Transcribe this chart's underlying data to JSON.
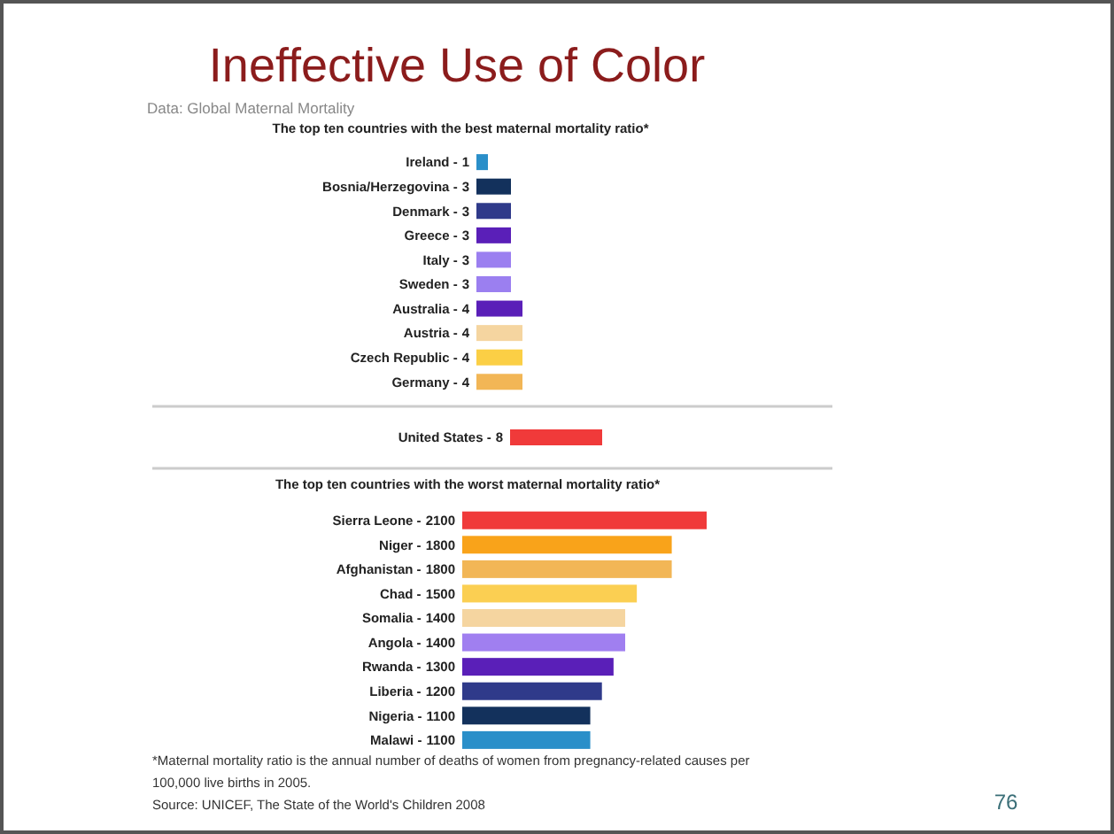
{
  "chart_data": [
    {
      "type": "bar",
      "orientation": "horizontal",
      "data_labels": true,
      "title": "Ineffective Use of Color",
      "subtitle": "The top ten countries with the best maternal mortality ratio*",
      "annotations": [
        "Data: Global Maternal Mortality",
        "76"
      ],
      "categories": [
        "Ireland -",
        "Bosnia/Herzegovina -",
        "Denmark -",
        "Greece -",
        "Italy -",
        "Sweden -",
        "Australia -",
        "Austria -",
        "Czech Republic -",
        "Germany -"
      ],
      "values": [
        1,
        3,
        3,
        3,
        3,
        3,
        4,
        4,
        4,
        4
      ],
      "colors": [
        "#2a8fc9",
        "#13315c",
        "#2f3a8a",
        "#5a1fb8",
        "#9b7ff0",
        "#9b7ff0",
        "#5a1fb8",
        "#f5d5a0",
        "#fbcf45",
        "#f2b656"
      ]
    },
    {
      "type": "bar",
      "orientation": "horizontal",
      "data_labels": true,
      "categories": [
        "United States -"
      ],
      "values": [
        8
      ],
      "colors": [
        "#f03a3a"
      ]
    },
    {
      "type": "bar",
      "orientation": "horizontal",
      "data_labels": true,
      "title": "The top ten countries with the worst maternal mortality ratio*",
      "annotations": [
        "*Maternal mortality ratio is the annual number of deaths of women from pregnancy-related causes per",
        "100,000 live births in 2005.",
        "Source: UNICEF, The State of the World's Children 2008"
      ],
      "categories": [
        "Sierra Leone -",
        "Niger -",
        "Afghanistan -",
        "Chad -",
        "Somalia -",
        "Angola -",
        "Rwanda -",
        "Liberia -",
        "Nigeria -",
        "Malawi -"
      ],
      "values": [
        2100,
        1800,
        1800,
        1500,
        1400,
        1400,
        1300,
        1200,
        1100,
        1100
      ],
      "colors": [
        "#f03a3a",
        "#f9a31a",
        "#f2b656",
        "#fbcf52",
        "#f5d5a0",
        "#a07ff0",
        "#5a1fb8",
        "#2f3a8a",
        "#13315c",
        "#2a8fc9"
      ]
    }
  ]
}
